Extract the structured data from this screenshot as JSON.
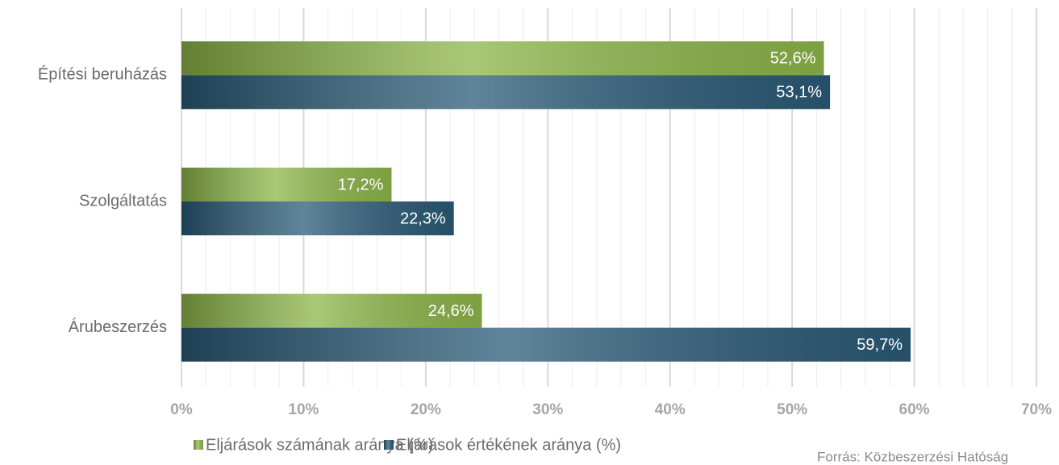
{
  "chart_data": {
    "type": "hbar",
    "categories": [
      "Építési beruházás",
      "Szolgáltatás",
      "Árubeszerzés"
    ],
    "series": [
      {
        "name": "Eljárások számának aránya (%)",
        "color": "#8db64a",
        "values": [
          52.6,
          17.2,
          24.6
        ],
        "value_labels": [
          "52,6%",
          "17,2%",
          "24,6%"
        ]
      },
      {
        "name": "Eljárások értékének aránya (%)",
        "color": "#2b5b77",
        "values": [
          53.1,
          22.3,
          59.7
        ],
        "value_labels": [
          "53,1%",
          "22,3%",
          "59,7%"
        ]
      }
    ],
    "xlim": [
      0,
      70
    ],
    "xticks": [
      {
        "value": 0,
        "label": "0%"
      },
      {
        "value": 10,
        "label": "10%"
      },
      {
        "value": 20,
        "label": "20%"
      },
      {
        "value": 30,
        "label": "30%"
      },
      {
        "value": 40,
        "label": "40%"
      },
      {
        "value": 50,
        "label": "50%"
      },
      {
        "value": 60,
        "label": "60%"
      },
      {
        "value": 70,
        "label": "70%"
      }
    ],
    "minor_xticks": [
      2,
      4,
      6,
      8,
      12,
      14,
      16,
      18,
      22,
      24,
      26,
      28,
      32,
      34,
      36,
      38,
      42,
      44,
      46,
      48,
      52,
      54,
      56,
      58,
      62,
      64,
      66,
      68
    ],
    "grid": true,
    "legend": "bottom left",
    "source": "Forrás: Közbeszerzési Hatóság"
  }
}
